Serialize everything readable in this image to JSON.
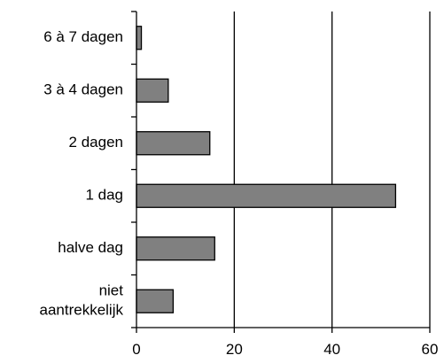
{
  "chart_data": {
    "type": "bar",
    "orientation": "horizontal",
    "title": "",
    "xlabel": "",
    "ylabel": "",
    "categories": [
      "6 à 7 dagen",
      "3 à 4 dagen",
      "2 dagen",
      "1 dag",
      "halve dag",
      "niet aantrekkelijk"
    ],
    "category_lines": [
      [
        "6 à 7 dagen"
      ],
      [
        "3 à 4 dagen"
      ],
      [
        "2 dagen"
      ],
      [
        "1 dag"
      ],
      [
        "halve dag"
      ],
      [
        "niet",
        "aantrekkelijk"
      ]
    ],
    "values": [
      1,
      6.5,
      15,
      53,
      16,
      7.5
    ],
    "xlim": [
      0,
      60
    ],
    "xticks": [
      0,
      20,
      40,
      60
    ],
    "xtick_labels": [
      "0",
      "20",
      "40",
      "60"
    ],
    "grid": "vertical",
    "legend": "none",
    "bar_color": "#808080",
    "bar_edge_color": "#000000"
  }
}
